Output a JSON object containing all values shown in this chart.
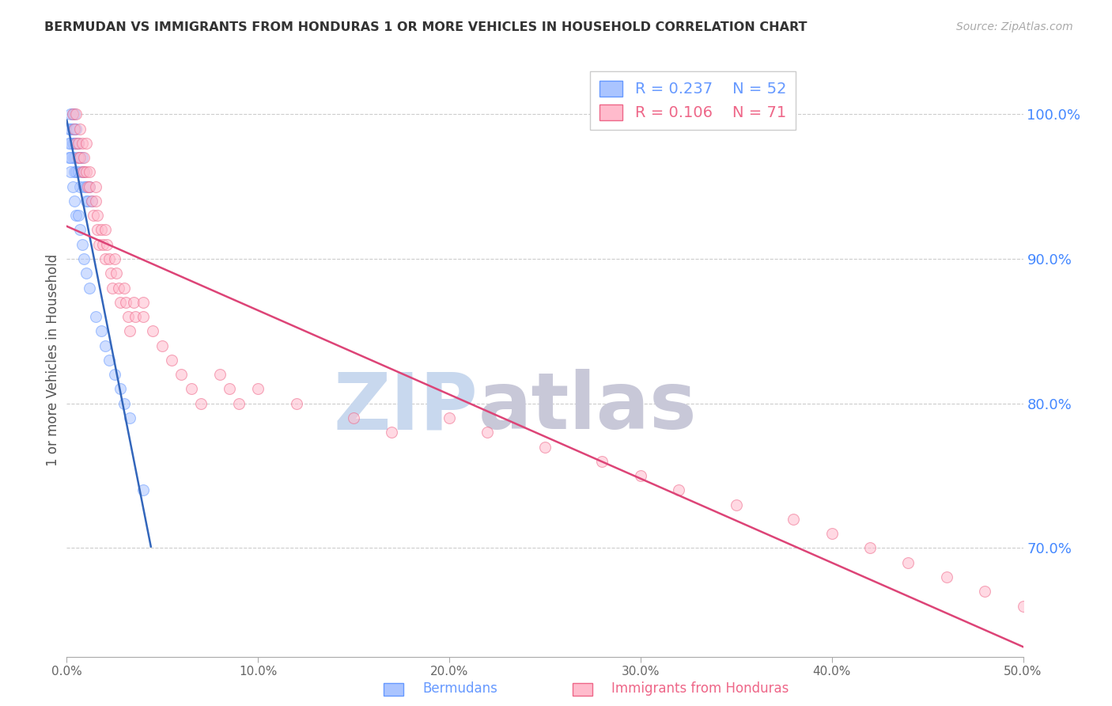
{
  "title": "BERMUDAN VS IMMIGRANTS FROM HONDURAS 1 OR MORE VEHICLES IN HOUSEHOLD CORRELATION CHART",
  "source": "Source: ZipAtlas.com",
  "ylabel_left": "1 or more Vehicles in Household",
  "ylabel_right_labels": [
    "100.0%",
    "90.0%",
    "80.0%",
    "70.0%"
  ],
  "ylabel_right_values": [
    1.0,
    0.9,
    0.8,
    0.7
  ],
  "xlim": [
    0.0,
    0.5
  ],
  "ylim": [
    0.625,
    1.035
  ],
  "xtick_labels": [
    "0.0%",
    "10.0%",
    "20.0%",
    "30.0%",
    "40.0%",
    "50.0%"
  ],
  "xtick_values": [
    0.0,
    0.1,
    0.2,
    0.3,
    0.4,
    0.5
  ],
  "watermark_zip": "ZIP",
  "watermark_atlas": "atlas",
  "watermark_color_zip": "#c8d8ee",
  "watermark_color_atlas": "#c8c8d8",
  "background_color": "#ffffff",
  "grid_color": "#cccccc",
  "title_color": "#333333",
  "right_axis_color": "#4488ff",
  "blue_color": "#6699ff",
  "blue_fill": "#aac4ff",
  "pink_color": "#ee6688",
  "pink_fill": "#ffbbcc",
  "dot_size": 100,
  "dot_alpha": 0.55,
  "line_width": 1.8,
  "blue_line_color": "#3366bb",
  "pink_line_color": "#dd4477",
  "blue_scatter_x": [
    0.001,
    0.002,
    0.002,
    0.002,
    0.003,
    0.003,
    0.003,
    0.003,
    0.004,
    0.004,
    0.004,
    0.004,
    0.004,
    0.005,
    0.005,
    0.005,
    0.006,
    0.006,
    0.006,
    0.007,
    0.007,
    0.008,
    0.008,
    0.009,
    0.009,
    0.01,
    0.01,
    0.011,
    0.012,
    0.013,
    0.001,
    0.001,
    0.002,
    0.002,
    0.003,
    0.004,
    0.005,
    0.006,
    0.007,
    0.008,
    0.009,
    0.01,
    0.012,
    0.015,
    0.018,
    0.02,
    0.022,
    0.025,
    0.028,
    0.03,
    0.033,
    0.04
  ],
  "blue_scatter_y": [
    0.99,
    1.0,
    0.99,
    0.98,
    1.0,
    0.99,
    0.98,
    0.97,
    1.0,
    0.99,
    0.98,
    0.97,
    0.96,
    0.99,
    0.98,
    0.96,
    0.98,
    0.97,
    0.96,
    0.97,
    0.95,
    0.97,
    0.96,
    0.96,
    0.95,
    0.95,
    0.94,
    0.94,
    0.95,
    0.94,
    0.98,
    0.97,
    0.97,
    0.96,
    0.95,
    0.94,
    0.93,
    0.93,
    0.92,
    0.91,
    0.9,
    0.89,
    0.88,
    0.86,
    0.85,
    0.84,
    0.83,
    0.82,
    0.81,
    0.8,
    0.79,
    0.74
  ],
  "pink_scatter_x": [
    0.003,
    0.004,
    0.005,
    0.005,
    0.006,
    0.006,
    0.007,
    0.007,
    0.008,
    0.008,
    0.009,
    0.009,
    0.01,
    0.01,
    0.011,
    0.012,
    0.012,
    0.013,
    0.014,
    0.015,
    0.015,
    0.016,
    0.016,
    0.017,
    0.018,
    0.019,
    0.02,
    0.02,
    0.021,
    0.022,
    0.023,
    0.024,
    0.025,
    0.026,
    0.027,
    0.028,
    0.03,
    0.031,
    0.032,
    0.033,
    0.035,
    0.036,
    0.04,
    0.04,
    0.045,
    0.05,
    0.055,
    0.06,
    0.065,
    0.07,
    0.08,
    0.085,
    0.09,
    0.1,
    0.12,
    0.15,
    0.17,
    0.2,
    0.22,
    0.25,
    0.28,
    0.3,
    0.32,
    0.35,
    0.38,
    0.4,
    0.42,
    0.44,
    0.46,
    0.48,
    0.5
  ],
  "pink_scatter_y": [
    1.0,
    0.99,
    1.0,
    0.98,
    0.98,
    0.97,
    0.99,
    0.97,
    0.98,
    0.96,
    0.97,
    0.96,
    0.98,
    0.96,
    0.95,
    0.96,
    0.95,
    0.94,
    0.93,
    0.95,
    0.94,
    0.93,
    0.92,
    0.91,
    0.92,
    0.91,
    0.92,
    0.9,
    0.91,
    0.9,
    0.89,
    0.88,
    0.9,
    0.89,
    0.88,
    0.87,
    0.88,
    0.87,
    0.86,
    0.85,
    0.87,
    0.86,
    0.87,
    0.86,
    0.85,
    0.84,
    0.83,
    0.82,
    0.81,
    0.8,
    0.82,
    0.81,
    0.8,
    0.81,
    0.8,
    0.79,
    0.78,
    0.79,
    0.78,
    0.77,
    0.76,
    0.75,
    0.74,
    0.73,
    0.72,
    0.71,
    0.7,
    0.69,
    0.68,
    0.67,
    0.66
  ],
  "legend_blue_label": "R = 0.237    N = 52",
  "legend_pink_label": "R = 0.106    N = 71",
  "bottom_label_blue": "Bermudans",
  "bottom_label_pink": "Immigrants from Honduras"
}
